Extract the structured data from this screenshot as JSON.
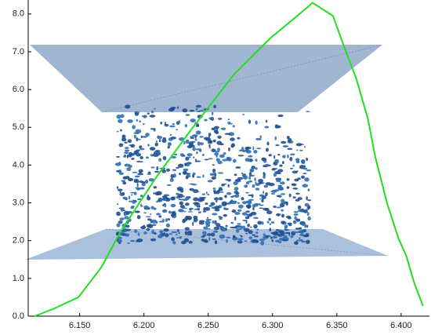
{
  "chart_data": {
    "type": "line",
    "x": [
      6.115,
      6.13,
      6.149,
      6.167,
      6.182,
      6.21,
      6.237,
      6.27,
      6.298,
      6.328,
      6.331,
      6.347,
      6.356,
      6.365,
      6.374,
      6.38,
      6.389,
      6.398,
      6.404,
      6.41,
      6.417
    ],
    "series": [
      {
        "color": "#22dd22",
        "values": [
          0.0,
          0.2,
          0.5,
          1.3,
          2.25,
          3.7,
          4.95,
          6.4,
          7.35,
          8.2,
          8.3,
          7.95,
          7.1,
          6.3,
          5.25,
          4.2,
          3.0,
          2.05,
          1.6,
          0.9,
          0.27
        ]
      }
    ],
    "xlim": [
      6.11,
      6.422
    ],
    "ylim": [
      0,
      8.37
    ],
    "xticks": [
      {
        "value": 6.15,
        "label": "6.150"
      },
      {
        "value": 6.2,
        "label": "6.200"
      },
      {
        "value": 6.25,
        "label": "6.250"
      },
      {
        "value": 6.3,
        "label": "6.300"
      },
      {
        "value": 6.35,
        "label": "6.350"
      },
      {
        "value": 6.4,
        "label": "6.400"
      }
    ],
    "yticks": [
      {
        "value": 0,
        "label": "0.0"
      },
      {
        "value": 1,
        "label": "1.0"
      },
      {
        "value": 2,
        "label": "2.0"
      },
      {
        "value": 3,
        "label": "3.0"
      },
      {
        "value": 4,
        "label": "4.0"
      },
      {
        "value": 5,
        "label": "5.0"
      },
      {
        "value": 6,
        "label": "6.0"
      },
      {
        "value": 7,
        "label": "7.0"
      },
      {
        "value": 8,
        "label": "8.0"
      }
    ],
    "grid": false
  }
}
